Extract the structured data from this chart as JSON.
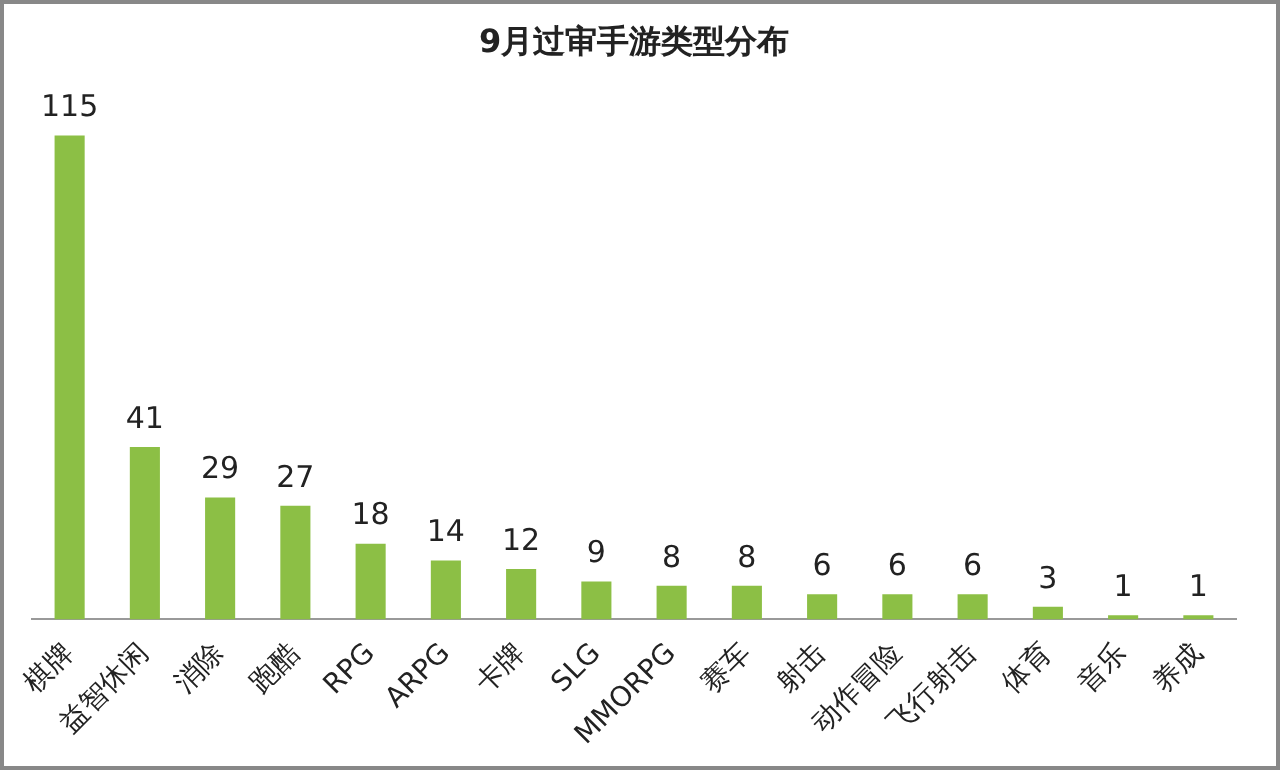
{
  "chart_data": {
    "type": "bar",
    "title": "9月过审手游类型分布",
    "categories": [
      "棋牌",
      "益智休闲",
      "消除",
      "跑酷",
      "RPG",
      "ARPG",
      "卡牌",
      "SLG",
      "MMORPG",
      "赛车",
      "射击",
      "动作冒险",
      "飞行射击",
      "体育",
      "音乐",
      "养成"
    ],
    "values": [
      115,
      41,
      29,
      27,
      18,
      14,
      12,
      9,
      8,
      8,
      6,
      6,
      6,
      3,
      1,
      1
    ],
    "color": "#8cbf45",
    "data_labels": true,
    "grid": false,
    "legend": false
  }
}
